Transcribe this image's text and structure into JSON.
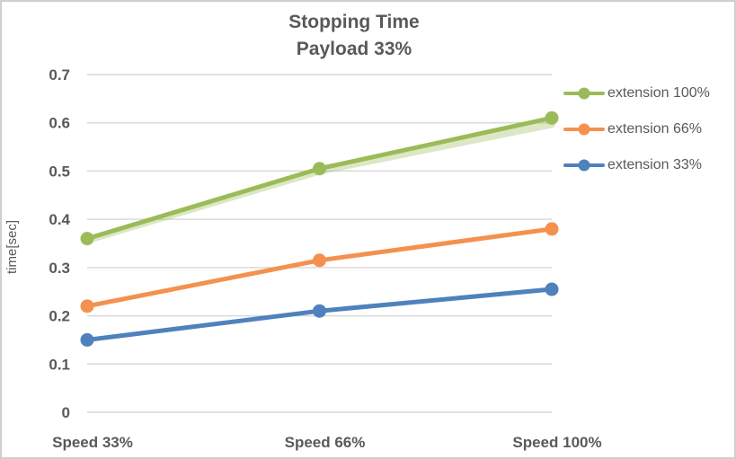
{
  "colors": {
    "text": "#595959",
    "grid": "#D9D9D9",
    "border": "#D0CECE",
    "background": "#FFFFFF"
  },
  "chart_data": {
    "type": "line",
    "title": "Stopping Time",
    "subtitle": "Payload 33%",
    "xlabel": "",
    "ylabel": "time[sec]",
    "categories": [
      "Speed 33%",
      "Speed 66%",
      "Speed 100%"
    ],
    "series": [
      {
        "name": "extension 100%",
        "color": "#9BBB59",
        "values": [
          0.36,
          0.505,
          0.61
        ],
        "shadow_values": [
          0.357,
          0.5,
          0.597
        ]
      },
      {
        "name": "extension 66%",
        "color": "#F4914E",
        "values": [
          0.22,
          0.315,
          0.38
        ]
      },
      {
        "name": "extension 33%",
        "color": "#4F81BD",
        "values": [
          0.15,
          0.21,
          0.255
        ]
      }
    ],
    "ylim": [
      0,
      0.7
    ],
    "yticks": [
      0,
      0.1,
      0.2,
      0.3,
      0.4,
      0.5,
      0.6,
      0.7
    ],
    "ytick_labels": [
      "0",
      "0.1",
      "0.2",
      "0.3",
      "0.4",
      "0.5",
      "0.6",
      "0.7"
    ],
    "grid": true,
    "legend_position": "right",
    "marker": "circle"
  }
}
